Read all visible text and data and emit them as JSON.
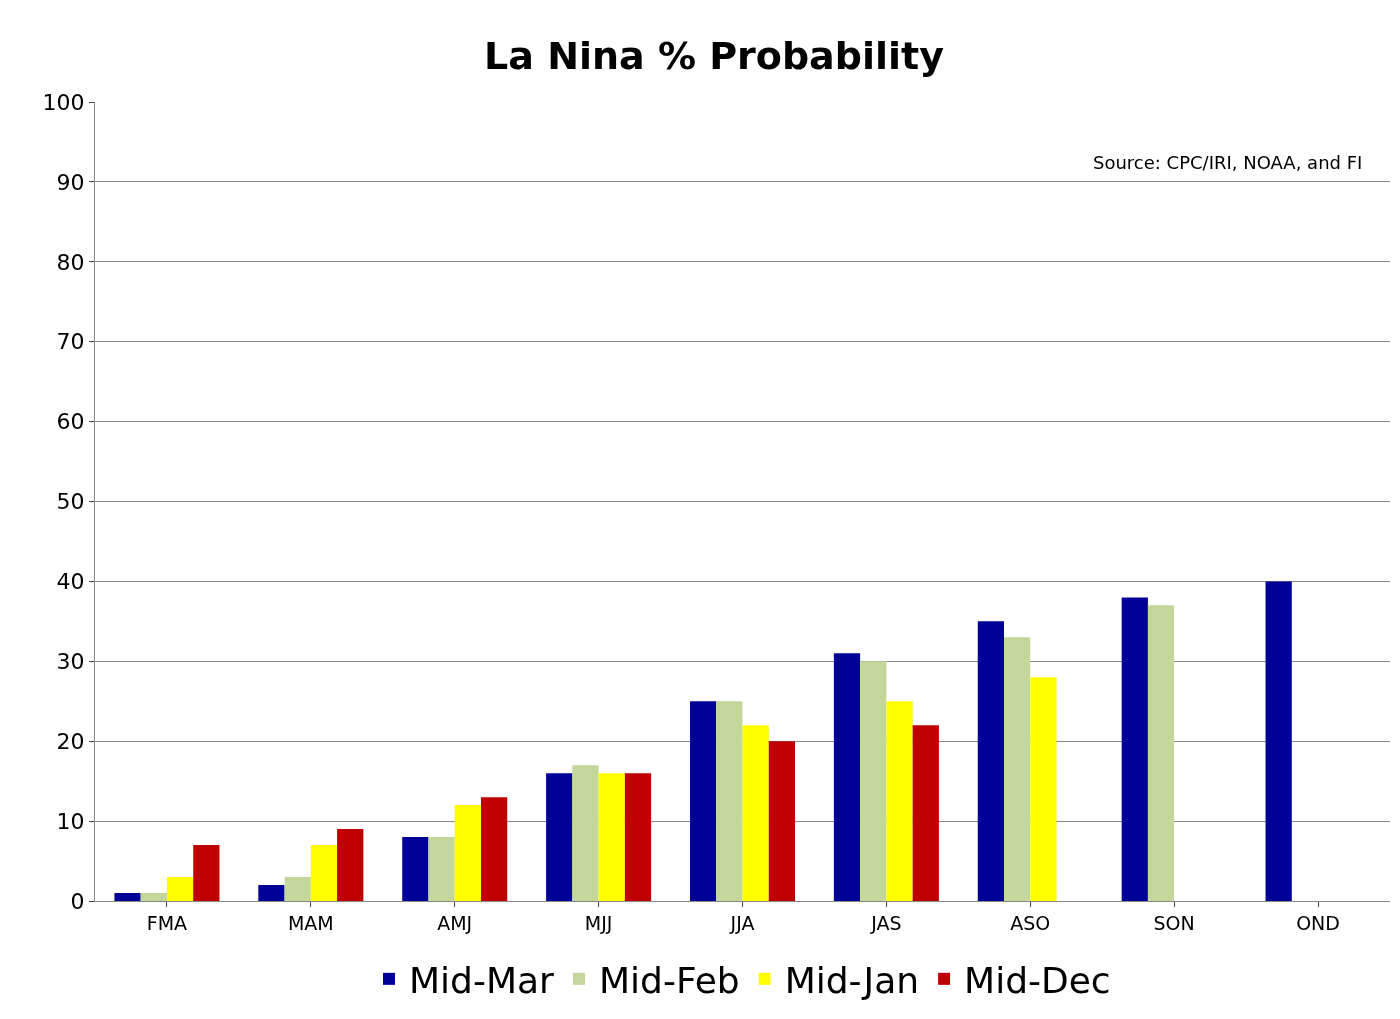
{
  "chart_data": {
    "type": "bar",
    "title": "La Nina % Probability",
    "categories": [
      "FMA",
      "MAM",
      "AMJ",
      "MJJ",
      "JJA",
      "JAS",
      "ASO",
      "SON",
      "OND"
    ],
    "series": [
      {
        "name": "Mid-Mar",
        "color": "#000099",
        "values": [
          1,
          2,
          8,
          16,
          25,
          31,
          35,
          38,
          40
        ]
      },
      {
        "name": "Mid-Feb",
        "color": "#c4d79b",
        "values": [
          1,
          3,
          8,
          17,
          25,
          30,
          33,
          37,
          null
        ]
      },
      {
        "name": "Mid-Jan",
        "color": "#ffff00",
        "values": [
          3,
          7,
          12,
          16,
          22,
          25,
          28,
          null,
          null
        ]
      },
      {
        "name": "Mid-Dec",
        "color": "#c00000",
        "values": [
          7,
          9,
          13,
          16,
          20,
          22,
          null,
          null,
          null
        ]
      }
    ],
    "ylim": [
      0,
      100
    ],
    "yticks": [
      0,
      10,
      20,
      30,
      40,
      50,
      60,
      70,
      80,
      90,
      100
    ],
    "grid": "y",
    "legend": "bottom",
    "annotations": [
      "Source: CPC/IRI, NOAA, and FI"
    ]
  }
}
